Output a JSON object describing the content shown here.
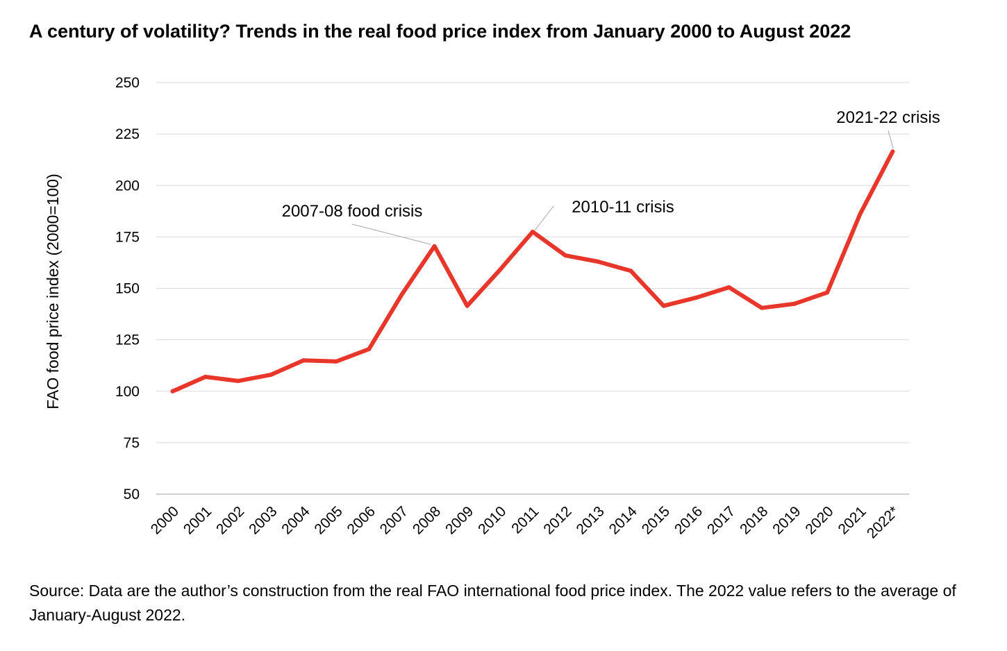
{
  "title": "A century of volatility? Trends in the real food price index from January 2000 to August 2022",
  "source": "Source: Data are the author’s construction from the real FAO international food price index. The 2022 value refers to the average of January-August 2022.",
  "colors": {
    "line": "#e8372a",
    "grid": "#d9d9d9",
    "axis": "#bfbfbf",
    "leader": "#a6a6a6"
  },
  "chart_data": {
    "type": "line",
    "title": "A century of volatility? Trends in the real food price index from January 2000 to August 2022",
    "xlabel": "",
    "ylabel": "FAO food price index (2000=100)",
    "ylim": [
      50,
      250
    ],
    "yticks": [
      50,
      75,
      100,
      125,
      150,
      175,
      200,
      225,
      250
    ],
    "grid": true,
    "categories": [
      "2000",
      "2001",
      "2002",
      "2003",
      "2004",
      "2005",
      "2006",
      "2007",
      "2008",
      "2009",
      "2010",
      "2011",
      "2012",
      "2013",
      "2014",
      "2015",
      "2016",
      "2017",
      "2018",
      "2019",
      "2020",
      "2021",
      "2022*"
    ],
    "series": [
      {
        "name": "Real FAO food price index",
        "values": [
          100,
          107,
          105,
          108,
          115,
          114.5,
          120.5,
          147,
          170.5,
          141.5,
          159,
          177.5,
          166,
          163,
          158.5,
          141.5,
          145.5,
          150.5,
          140.5,
          142.5,
          148,
          186,
          216.5
        ]
      }
    ],
    "annotations": [
      {
        "text": "2007-08 food crisis",
        "category": "2008"
      },
      {
        "text": "2010-11 crisis",
        "category": "2011"
      },
      {
        "text": "2021-22 crisis",
        "category": "2022*"
      }
    ]
  }
}
